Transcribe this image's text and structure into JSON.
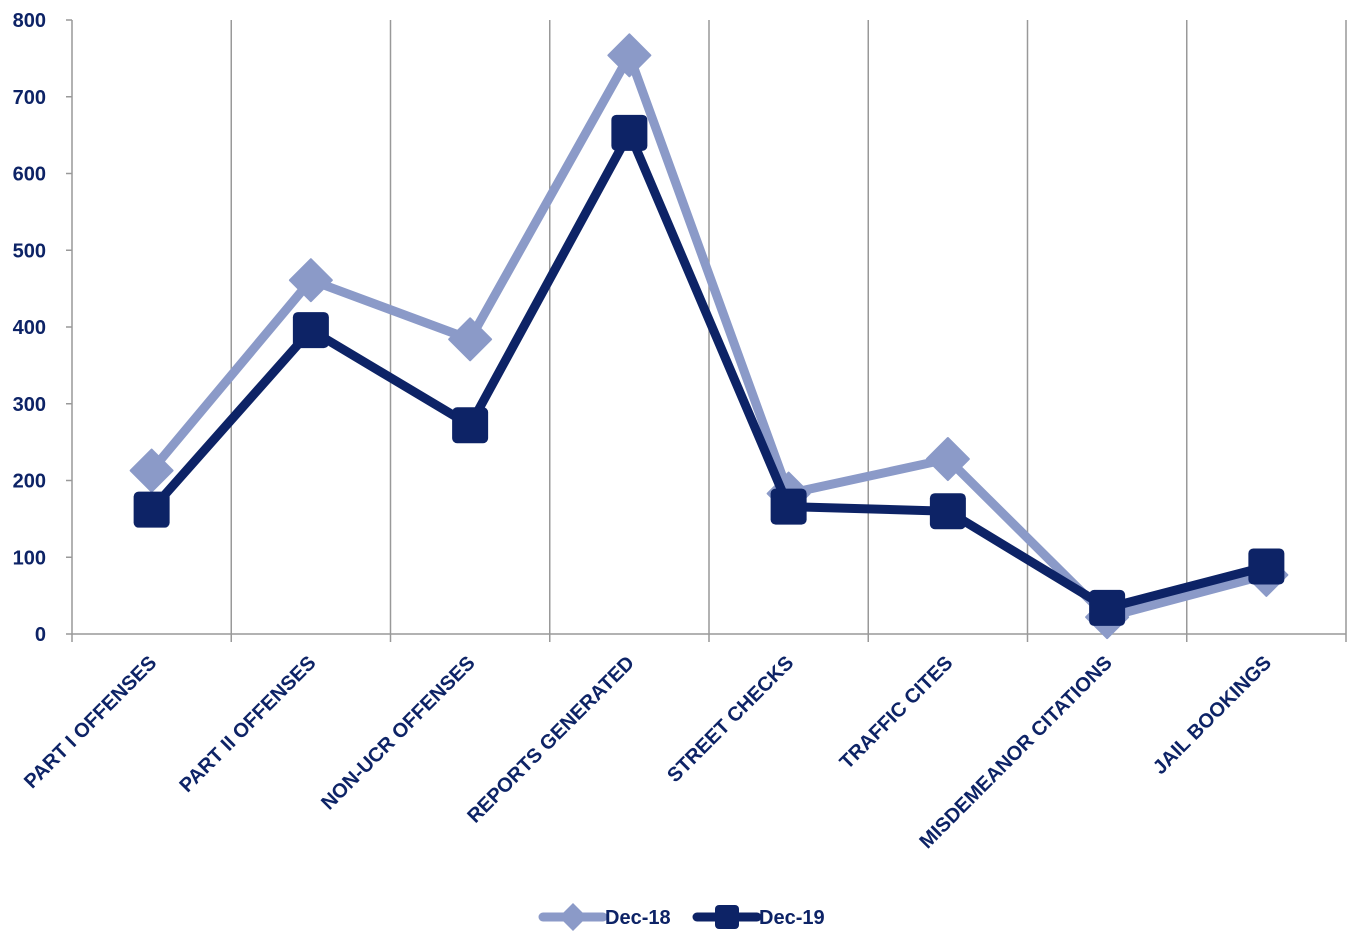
{
  "chart_data": {
    "type": "line",
    "categories": [
      "PART I OFFENSES",
      "PART II OFFENSES",
      "NON-UCR OFFENSES",
      "REPORTS GENERATED",
      "STREET CHECKS",
      "TRAFFIC CITES",
      "MISDEMEANOR CITATIONS",
      "JAIL BOOKINGS"
    ],
    "series": [
      {
        "name": "Dec-18",
        "values": [
          213,
          461,
          384,
          754,
          183,
          228,
          22,
          77
        ],
        "color": "#8b9ac8",
        "marker": "diamond"
      },
      {
        "name": "Dec-19",
        "values": [
          162,
          396,
          272,
          653,
          166,
          160,
          34,
          88
        ],
        "color": "#0d2366",
        "marker": "square"
      }
    ],
    "ylim": [
      0,
      800
    ],
    "yticks": [
      0,
      100,
      200,
      300,
      400,
      500,
      600,
      700,
      800
    ],
    "grid": "vertical",
    "legend": "bottom",
    "text_color": "#0d2366",
    "grid_color": "#999999"
  }
}
